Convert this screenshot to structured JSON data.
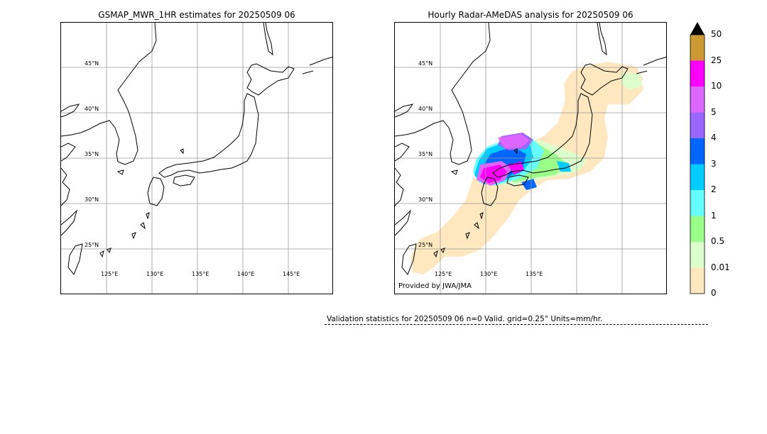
{
  "left_panel": {
    "title": "GSMAP_MWR_1HR estimates for 20250509 06",
    "lat_labels": [
      "45°N",
      "40°N",
      "35°N",
      "30°N",
      "25°N"
    ],
    "lon_labels": [
      "125°E",
      "130°E",
      "135°E",
      "140°E",
      "145°E"
    ]
  },
  "right_panel": {
    "title": "Hourly Radar-AMeDAS analysis for 20250509 06",
    "lat_labels": [
      "45°N",
      "40°N",
      "35°N",
      "30°N",
      "25°N"
    ],
    "lon_labels": [
      "125°E",
      "130°E",
      "135°E"
    ],
    "credit": "Provided by JWA/JMA"
  },
  "colorbar": {
    "labels": [
      "50",
      "25",
      "10",
      "5",
      "4",
      "3",
      "2",
      "1",
      "0.5",
      "0.01",
      "0"
    ],
    "colors": [
      "#cc9933",
      "#ff00ff",
      "#dd66ff",
      "#9966ff",
      "#0066ff",
      "#00ccff",
      "#66ffff",
      "#99ff88",
      "#ddffcc",
      "#ffe8c0"
    ],
    "extend_color": "#000000"
  },
  "stats": {
    "text": "Validation statistics for 20250509 06  n=0 Valid. grid=0.25° Units=mm/hr."
  }
}
